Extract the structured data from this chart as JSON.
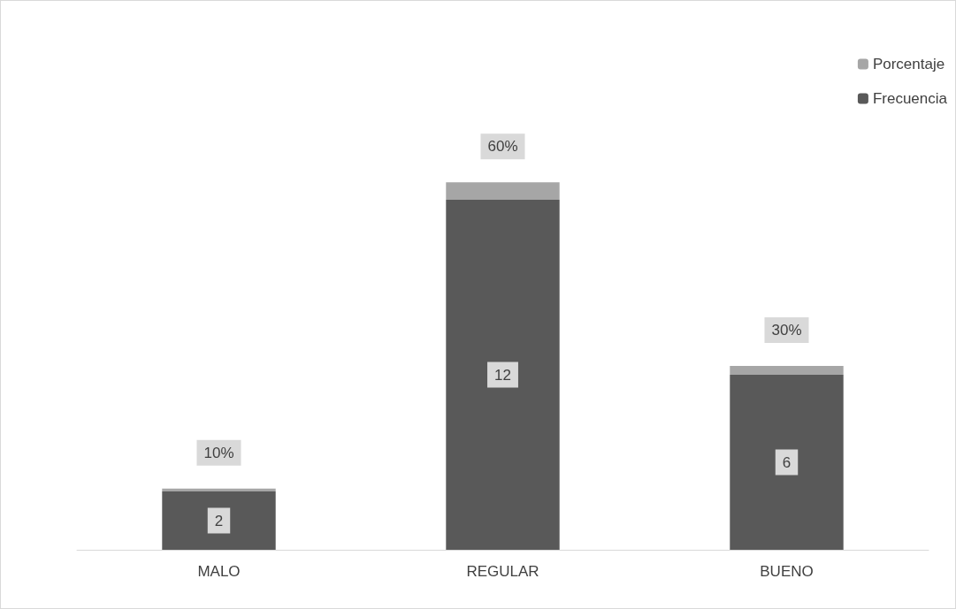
{
  "chart_data": {
    "type": "bar",
    "stacked": true,
    "categories": [
      "MALO",
      "REGULAR",
      "BUENO"
    ],
    "series": [
      {
        "name": "Frecuencia",
        "color": "#595959",
        "values": [
          2,
          12,
          6
        ],
        "value_labels": [
          "2",
          "12",
          "6"
        ]
      },
      {
        "name": "Porcentaje",
        "color": "#a6a6a6",
        "values": [
          0.1,
          0.6,
          0.3
        ],
        "value_labels": [
          "10%",
          "60%",
          "30%"
        ]
      }
    ],
    "legend": "top right",
    "tick_labels": "x"
  }
}
